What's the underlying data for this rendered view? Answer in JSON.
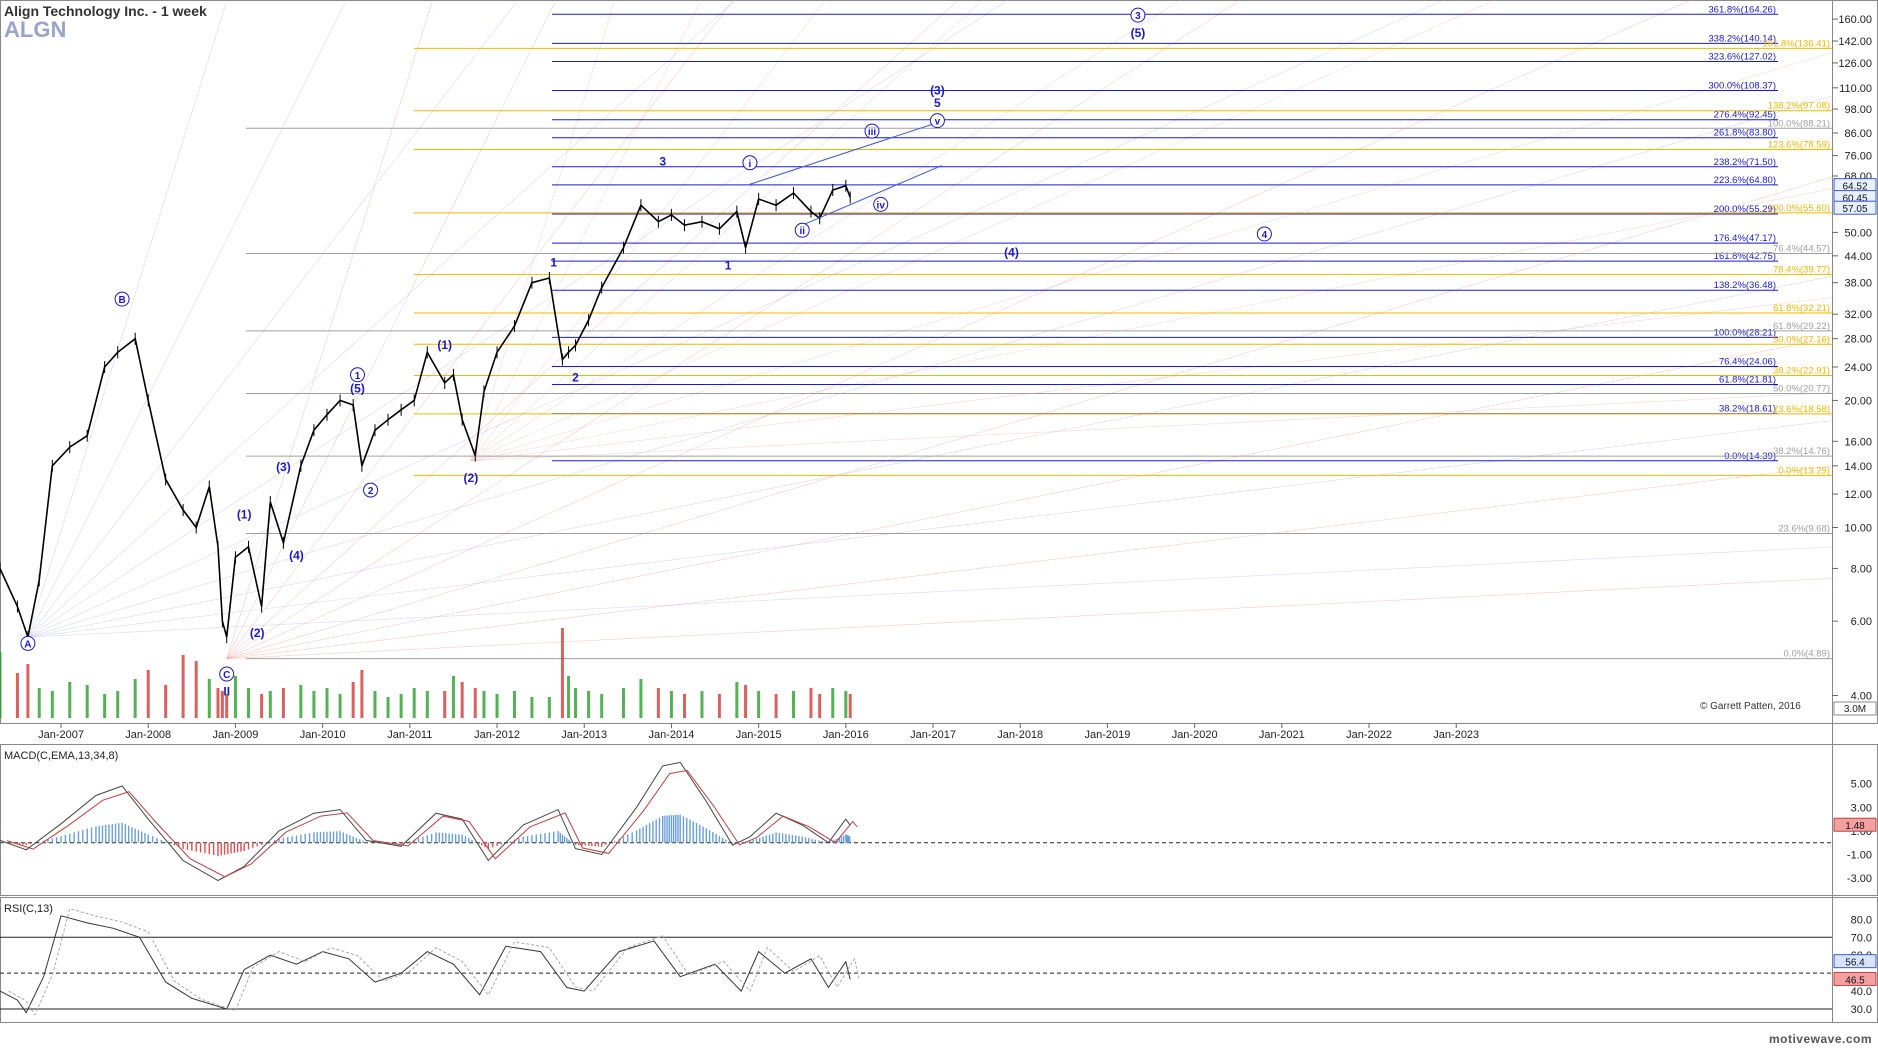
{
  "header": {
    "title": "Align Technology Inc. - 1 week",
    "symbol": "ALGN"
  },
  "copyright": "© Garrett Patten, 2016",
  "watermark": "motivewave.com",
  "colors": {
    "up": "#2a9d2a",
    "down": "#d23a3a",
    "price": "#000000",
    "blueLevel": "#1a1ad6",
    "goldLevel": "#f0b800",
    "grayLevel": "#a0a0a0",
    "waveLabel": "#1a1acc"
  },
  "chart_data": [
    {
      "type": "line",
      "name": "price",
      "scale": "log",
      "ylim": [
        3.5,
        170
      ],
      "x_ticks": [
        "Jan-2007",
        "Jan-2008",
        "Jan-2009",
        "Jan-2010",
        "Jan-2011",
        "Jan-2012",
        "Jan-2013",
        "Jan-2014",
        "Jan-2015",
        "Jan-2016",
        "Jan-2017",
        "Jan-2018",
        "Jan-2019",
        "Jan-2020",
        "Jan-2021",
        "Jan-2022",
        "Jan-2023"
      ],
      "y_ticks": [
        160,
        142,
        126,
        110,
        98,
        86,
        76,
        68,
        50,
        44,
        38,
        32,
        28,
        24,
        20,
        16,
        14,
        12,
        10,
        8,
        6,
        4
      ],
      "price_tags": [
        "64.52",
        "60.45",
        "57.05"
      ],
      "volume_tag": "3.0M",
      "x": [
        2006.3,
        2006.5,
        2006.62,
        2006.75,
        2006.9,
        2007.1,
        2007.3,
        2007.5,
        2007.65,
        2007.85,
        2008.0,
        2008.2,
        2008.4,
        2008.55,
        2008.7,
        2008.8,
        2008.85,
        2008.9,
        2009.0,
        2009.15,
        2009.3,
        2009.4,
        2009.55,
        2009.75,
        2009.9,
        2010.05,
        2010.2,
        2010.35,
        2010.45,
        2010.6,
        2010.75,
        2010.9,
        2011.05,
        2011.2,
        2011.4,
        2011.5,
        2011.6,
        2011.75,
        2011.85,
        2012.0,
        2012.2,
        2012.4,
        2012.6,
        2012.75,
        2012.82,
        2012.9,
        2013.05,
        2013.2,
        2013.45,
        2013.65,
        2013.85,
        2014.0,
        2014.15,
        2014.35,
        2014.55,
        2014.75,
        2014.85,
        2015.0,
        2015.2,
        2015.4,
        2015.6,
        2015.7,
        2015.85,
        2016.0,
        2016.05
      ],
      "values": [
        8.0,
        6.5,
        5.5,
        7.5,
        14,
        15.5,
        16.5,
        24,
        26,
        28,
        20,
        13,
        11,
        10,
        12.5,
        9,
        6,
        5.5,
        8.5,
        9,
        6.5,
        11.5,
        9.2,
        14,
        17,
        18.5,
        20,
        19.5,
        14,
        17,
        18,
        19,
        20,
        26,
        22,
        23,
        18,
        14.8,
        21,
        26,
        30,
        38,
        39,
        25,
        26,
        27,
        31,
        37,
        46,
        58,
        53,
        55,
        52,
        53,
        51,
        56,
        46,
        60,
        58,
        62,
        56,
        54,
        63,
        64.5,
        60.5
      ],
      "volume": [
        2.2,
        1.5,
        1.8,
        1.0,
        0.9,
        1.2,
        1.1,
        0.8,
        0.9,
        1.3,
        1.6,
        1.1,
        2.1,
        1.9,
        1.3,
        1.0,
        0.9,
        0.8,
        1.4,
        1.0,
        0.8,
        0.9,
        1.0,
        1.1,
        0.9,
        1.0,
        0.8,
        1.2,
        1.6,
        0.9,
        0.7,
        0.8,
        1.0,
        0.9,
        0.9,
        1.4,
        1.2,
        1.0,
        0.9,
        0.8,
        0.9,
        0.7,
        0.7,
        3.0,
        1.4,
        1.0,
        0.9,
        0.8,
        1.0,
        1.3,
        1.0,
        0.9,
        0.8,
        0.9,
        0.8,
        1.2,
        1.1,
        0.9,
        0.8,
        0.9,
        1.0,
        0.8,
        1.0,
        0.9,
        0.8
      ]
    },
    {
      "type": "line",
      "name": "MACD(C,EMA,13,34,8)",
      "y_ticks": [
        "5.00",
        "3.00",
        "1.00",
        "-1.00",
        "-3.00"
      ],
      "current_value": "1.48",
      "ylim": [
        -4,
        7
      ],
      "x": [
        2006.3,
        2006.6,
        2007.0,
        2007.4,
        2007.7,
        2008.0,
        2008.4,
        2008.8,
        2009.1,
        2009.5,
        2009.9,
        2010.2,
        2010.5,
        2010.9,
        2011.3,
        2011.6,
        2011.9,
        2012.3,
        2012.7,
        2012.9,
        2013.2,
        2013.6,
        2013.9,
        2014.1,
        2014.4,
        2014.7,
        2014.9,
        2015.2,
        2015.5,
        2015.8,
        2016.0,
        2016.05
      ],
      "values": [
        0.2,
        -0.6,
        1.6,
        4.0,
        4.8,
        2.0,
        -1.5,
        -3.2,
        -2.0,
        1.0,
        2.5,
        2.8,
        0.2,
        -0.3,
        2.5,
        2.0,
        -1.5,
        1.5,
        2.8,
        -0.5,
        -1.0,
        3.0,
        6.5,
        6.8,
        3.5,
        -0.2,
        0.5,
        2.5,
        1.5,
        0.0,
        2.0,
        1.48
      ]
    },
    {
      "type": "line",
      "name": "RSI(C,13)",
      "y_ticks": [
        "80.0",
        "70.0",
        "60.0",
        "40.0",
        "30.0"
      ],
      "price_tags": [
        "56.4",
        "46.5"
      ],
      "ylim": [
        25,
        88
      ],
      "x": [
        2006.3,
        2006.5,
        2006.6,
        2006.8,
        2007.0,
        2007.3,
        2007.6,
        2007.9,
        2008.2,
        2008.5,
        2008.9,
        2009.1,
        2009.4,
        2009.7,
        2010.0,
        2010.3,
        2010.6,
        2010.9,
        2011.2,
        2011.5,
        2011.8,
        2012.1,
        2012.5,
        2012.8,
        2013.0,
        2013.4,
        2013.8,
        2014.1,
        2014.5,
        2014.8,
        2015.0,
        2015.3,
        2015.6,
        2015.8,
        2016.0,
        2016.05
      ],
      "values": [
        40,
        35,
        28,
        48,
        82,
        78,
        75,
        70,
        45,
        36,
        30,
        52,
        60,
        55,
        62,
        58,
        45,
        50,
        62,
        55,
        38,
        65,
        62,
        42,
        40,
        62,
        68,
        48,
        55,
        40,
        62,
        50,
        58,
        42,
        56.4,
        46.5
      ]
    }
  ],
  "levels": [
    {
      "label": "361.8%(164.26)",
      "value": 164.26,
      "color": "blue"
    },
    {
      "label": "338.2%(140.14)",
      "value": 140.14,
      "color": "blue"
    },
    {
      "label": "323.6%(127.02)",
      "value": 127.02,
      "color": "blue"
    },
    {
      "label": "300.0%(108.37)",
      "value": 108.37,
      "color": "blue"
    },
    {
      "label": "276.4%(92.45)",
      "value": 92.45,
      "color": "blue"
    },
    {
      "label": "261.8%(83.80)",
      "value": 83.8,
      "color": "blue"
    },
    {
      "label": "238.2%(71.50)",
      "value": 71.5,
      "color": "blue"
    },
    {
      "label": "223.6%(64.80)",
      "value": 64.8,
      "color": "blue"
    },
    {
      "label": "200.0%(55.29)",
      "value": 55.29,
      "color": "blue"
    },
    {
      "label": "176.4%(47.17)",
      "value": 47.17,
      "color": "blue"
    },
    {
      "label": "161.8%(42.75)",
      "value": 42.75,
      "color": "blue"
    },
    {
      "label": "138.2%(36.48)",
      "value": 36.48,
      "color": "blue"
    },
    {
      "label": "100.0%(28.21)",
      "value": 28.21,
      "color": "blue"
    },
    {
      "label": "76.4%(24.06)",
      "value": 24.06,
      "color": "blue"
    },
    {
      "label": "61.8%(21.81)",
      "value": 21.81,
      "color": "blue"
    },
    {
      "label": "38.2%(18.61)",
      "value": 18.61,
      "color": "blue"
    },
    {
      "label": "0.0%(14.39)",
      "value": 14.39,
      "color": "blue"
    },
    {
      "label": "161.8%(136.41)",
      "value": 136.41,
      "color": "gold"
    },
    {
      "label": "138.2%(97.08)",
      "value": 97.08,
      "color": "gold"
    },
    {
      "label": "123.6%(78.59)",
      "value": 78.59,
      "color": "gold"
    },
    {
      "label": "100.0%(55.60)",
      "value": 55.6,
      "color": "gold"
    },
    {
      "label": "78.4%(39.77)",
      "value": 39.77,
      "color": "gold"
    },
    {
      "label": "61.8%(32.21)",
      "value": 32.21,
      "color": "gold"
    },
    {
      "label": "50.0%(27.16)",
      "value": 27.16,
      "color": "gold"
    },
    {
      "label": "38.2%(22.91)",
      "value": 22.91,
      "color": "gold"
    },
    {
      "label": "23.6%(18.58)",
      "value": 18.58,
      "color": "gold"
    },
    {
      "label": "0.0%(13.29)",
      "value": 13.29,
      "color": "gold"
    },
    {
      "label": "100.0%(88.21)",
      "value": 88.21,
      "color": "gray"
    },
    {
      "label": "76.4%(44.57)",
      "value": 44.57,
      "color": "gray"
    },
    {
      "label": "61.8%(29.22)",
      "value": 29.22,
      "color": "gray"
    },
    {
      "label": "50.0%(20.77)",
      "value": 20.77,
      "color": "gray"
    },
    {
      "label": "38.2%(14.76)",
      "value": 14.76,
      "color": "gray"
    },
    {
      "label": "23.6%(9.68)",
      "value": 9.68,
      "color": "gray"
    },
    {
      "label": "0.0%(4.89)",
      "value": 4.89,
      "color": "gray"
    }
  ],
  "wave_labels": [
    {
      "text": "A",
      "x": 2006.62,
      "y": 5.2,
      "circled": true
    },
    {
      "text": "B",
      "x": 2007.7,
      "y": 34,
      "circled": true
    },
    {
      "text": "C",
      "x": 2008.9,
      "y": 4.4,
      "circled": true
    },
    {
      "text": "II",
      "x": 2008.9,
      "y": 4.0,
      "circled": false
    },
    {
      "text": "(1)",
      "x": 2009.1,
      "y": 10.5,
      "circled": false
    },
    {
      "text": "(2)",
      "x": 2009.25,
      "y": 5.5,
      "circled": false
    },
    {
      "text": "(3)",
      "x": 2009.55,
      "y": 13.6,
      "circled": false
    },
    {
      "text": "(4)",
      "x": 2009.7,
      "y": 8.4,
      "circled": false
    },
    {
      "text": "1",
      "x": 2010.4,
      "y": 22.5,
      "circled": true
    },
    {
      "text": "(5)",
      "x": 2010.4,
      "y": 20.9,
      "circled": false
    },
    {
      "text": "2",
      "x": 2010.55,
      "y": 12.0,
      "circled": true
    },
    {
      "text": "(1)",
      "x": 2011.4,
      "y": 26.5,
      "circled": false
    },
    {
      "text": "(2)",
      "x": 2011.7,
      "y": 12.8,
      "circled": false
    },
    {
      "text": "1",
      "x": 2012.65,
      "y": 41.5,
      "circled": false
    },
    {
      "text": "2",
      "x": 2012.9,
      "y": 22.2,
      "circled": false
    },
    {
      "text": "3",
      "x": 2013.9,
      "y": 72,
      "circled": false
    },
    {
      "text": "i",
      "x": 2014.9,
      "y": 71.5,
      "circled": true
    },
    {
      "text": "1",
      "x": 2014.65,
      "y": 40.8,
      "circled": false
    },
    {
      "text": "ii",
      "x": 2015.5,
      "y": 49.5,
      "circled": true
    },
    {
      "text": "iii",
      "x": 2016.3,
      "y": 85,
      "circled": true
    },
    {
      "text": "iv",
      "x": 2016.4,
      "y": 57,
      "circled": true
    },
    {
      "text": "v",
      "x": 2017.05,
      "y": 90,
      "circled": true
    },
    {
      "text": "(3)",
      "x": 2017.05,
      "y": 106,
      "circled": false
    },
    {
      "text": "5",
      "x": 2017.05,
      "y": 99,
      "circled": false
    },
    {
      "text": "(4)",
      "x": 2017.9,
      "y": 43.8,
      "circled": false
    },
    {
      "text": "3",
      "x": 2019.35,
      "y": 160,
      "circled": true
    },
    {
      "text": "(5)",
      "x": 2019.35,
      "y": 145,
      "circled": false
    },
    {
      "text": "4",
      "x": 2020.8,
      "y": 48.5,
      "circled": true
    }
  ]
}
